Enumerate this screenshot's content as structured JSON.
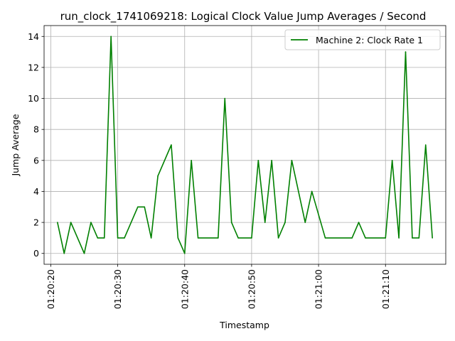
{
  "chart_data": {
    "type": "line",
    "title": "run_clock_1741069218: Logical Clock Value Jump Averages / Second",
    "xlabel": "Timestamp",
    "ylabel": "Jump Average",
    "x_tick_labels": [
      "01:20:20",
      "01:20:30",
      "01:20:40",
      "01:20:50",
      "01:21:00",
      "01:21:10"
    ],
    "y_ticks": [
      0,
      2,
      4,
      6,
      8,
      10,
      12,
      14
    ],
    "xlim": [
      "01:20:19",
      "01:21:19"
    ],
    "ylim": [
      -0.7,
      14.7
    ],
    "grid": true,
    "legend_position": "top-right",
    "series": [
      {
        "name": "Machine 2: Clock Rate 1",
        "color": "#008000",
        "x": [
          "01:20:21",
          "01:20:22",
          "01:20:23",
          "01:20:25",
          "01:20:26",
          "01:20:27",
          "01:20:28",
          "01:20:29",
          "01:20:30",
          "01:20:31",
          "01:20:33",
          "01:20:34",
          "01:20:35",
          "01:20:36",
          "01:20:38",
          "01:20:39",
          "01:20:40",
          "01:20:41",
          "01:20:42",
          "01:20:45",
          "01:20:46",
          "01:20:47",
          "01:20:48",
          "01:20:50",
          "01:20:51",
          "01:20:52",
          "01:20:53",
          "01:20:54",
          "01:20:55",
          "01:20:56",
          "01:20:58",
          "01:20:59",
          "01:21:01",
          "01:21:05",
          "01:21:06",
          "01:21:07",
          "01:21:10",
          "01:21:11",
          "01:21:12",
          "01:21:13",
          "01:21:14",
          "01:21:15",
          "01:21:16",
          "01:21:17"
        ],
        "y": [
          2,
          0,
          2,
          0,
          2,
          1,
          1,
          14,
          1,
          1,
          3,
          3,
          1,
          5,
          7,
          1,
          0,
          6,
          1,
          1,
          10,
          2,
          1,
          1,
          6,
          2,
          6,
          1,
          2,
          6,
          2,
          4,
          1,
          1,
          2,
          1,
          1,
          6,
          1,
          13,
          1,
          1,
          7,
          1
        ]
      }
    ]
  }
}
